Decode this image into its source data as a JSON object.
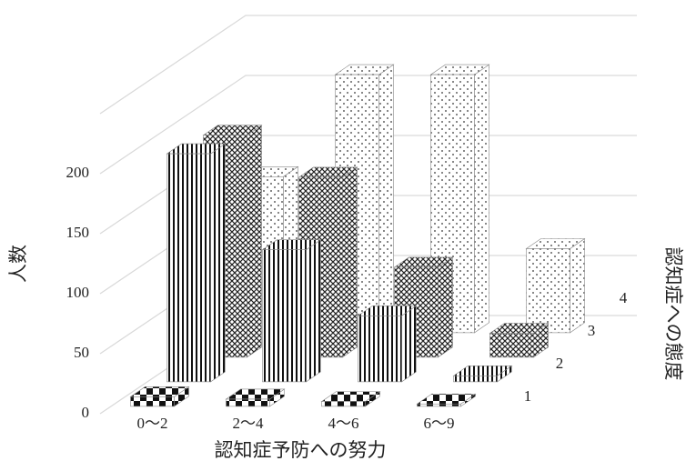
{
  "chart_data": {
    "type": "bar3d",
    "x_label": "認知症予防への努力",
    "y_label": "人数",
    "z_label": "認知症への態度",
    "categories": [
      "0～2",
      "2～4",
      "4～6",
      "6～9"
    ],
    "series": [
      {
        "name": "1",
        "values": [
          8,
          6,
          4,
          2
        ]
      },
      {
        "name": "2",
        "values": [
          190,
          110,
          55,
          5
        ]
      },
      {
        "name": "3",
        "values": [
          185,
          150,
          75,
          20
        ]
      },
      {
        "name": "4",
        "values": [
          130,
          215,
          215,
          70
        ]
      }
    ],
    "ylim": [
      0,
      250
    ],
    "yticks": [
      0,
      50,
      100,
      150,
      200
    ],
    "grid": true
  }
}
